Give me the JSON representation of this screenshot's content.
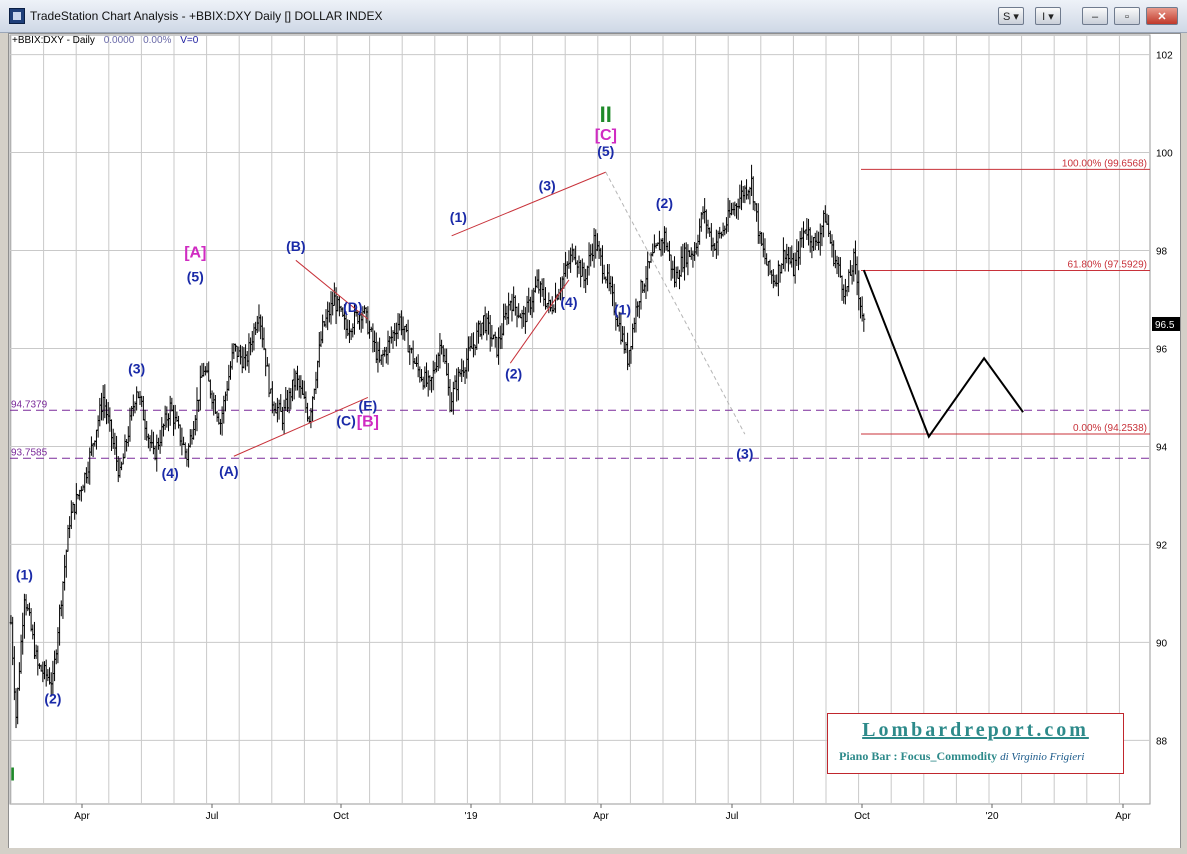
{
  "window": {
    "title": "TradeStation Chart Analysis - +BBIX:DXY Daily [] DOLLAR INDEX",
    "buttons": [
      "S",
      "I"
    ]
  },
  "header": {
    "symbol": "+BBIX:DXY - Daily",
    "change": "0.0000",
    "percent": "0.00%",
    "volume": "V=0"
  },
  "watermark": {
    "title": "Lombardreport.com",
    "subtitle": "Piano Bar : Focus_Commodity",
    "author": "di Virginio Frigieri"
  },
  "chart_data": {
    "type": "ohlc",
    "title": "",
    "x_labels": [
      "Apr",
      "Jul",
      "Oct",
      "'19",
      "Apr",
      "Jul",
      "Oct",
      "'20",
      "Apr"
    ],
    "y_ticks": [
      88,
      90,
      92,
      94,
      96,
      98,
      100,
      102
    ],
    "ylim": [
      86.7,
      102.4
    ],
    "last_price_label": "96.5",
    "grid": true,
    "price_path": [
      [
        0,
        90.4
      ],
      [
        3,
        88.5
      ],
      [
        8,
        91.0
      ],
      [
        16,
        89.5
      ],
      [
        25,
        89.2
      ],
      [
        28,
        90.3
      ],
      [
        35,
        92.5
      ],
      [
        45,
        93.5
      ],
      [
        55,
        95.0
      ],
      [
        65,
        93.4
      ],
      [
        75,
        95.2
      ],
      [
        85,
        93.8
      ],
      [
        95,
        94.8
      ],
      [
        105,
        93.8
      ],
      [
        115,
        95.6
      ],
      [
        125,
        94.5
      ],
      [
        133,
        96.0
      ],
      [
        140,
        95.7
      ],
      [
        148,
        96.8
      ],
      [
        155,
        95.0
      ],
      [
        162,
        94.6
      ],
      [
        170,
        95.4
      ],
      [
        178,
        94.6
      ],
      [
        186,
        96.4
      ],
      [
        193,
        97.0
      ],
      [
        200,
        96.4
      ],
      [
        210,
        96.8
      ],
      [
        220,
        95.7
      ],
      [
        232,
        96.6
      ],
      [
        242,
        95.6
      ],
      [
        250,
        95.2
      ],
      [
        257,
        96.2
      ],
      [
        262,
        94.9
      ],
      [
        268,
        95.5
      ],
      [
        275,
        96.0
      ],
      [
        282,
        96.6
      ],
      [
        290,
        96.0
      ],
      [
        298,
        97.0
      ],
      [
        306,
        96.6
      ],
      [
        314,
        97.3
      ],
      [
        322,
        96.8
      ],
      [
        330,
        97.5
      ],
      [
        336,
        98.0
      ],
      [
        342,
        97.4
      ],
      [
        348,
        98.2
      ],
      [
        355,
        97.5
      ],
      [
        362,
        96.6
      ],
      [
        368,
        95.8
      ],
      [
        374,
        97.0
      ],
      [
        382,
        97.8
      ],
      [
        390,
        98.3
      ],
      [
        396,
        97.4
      ],
      [
        402,
        97.9
      ],
      [
        408,
        98.0
      ],
      [
        413,
        98.8
      ],
      [
        419,
        98.1
      ],
      [
        425,
        98.4
      ],
      [
        430,
        98.8
      ],
      [
        437,
        99.2
      ],
      [
        442,
        99.4
      ],
      [
        447,
        98.2
      ],
      [
        452,
        97.6
      ],
      [
        456,
        97.4
      ],
      [
        462,
        98.0
      ],
      [
        467,
        97.6
      ],
      [
        474,
        98.5
      ],
      [
        480,
        98.1
      ],
      [
        486,
        98.7
      ],
      [
        490,
        98.0
      ],
      [
        494,
        97.6
      ],
      [
        498,
        97.1
      ],
      [
        503,
        97.8
      ],
      [
        509,
        96.5
      ]
    ],
    "waves": [
      {
        "label": "I",
        "date_idx": 1,
        "price": 88.0
      },
      {
        "label": "(1)",
        "date_idx": 8,
        "price": 91.0
      },
      {
        "label": "(2)",
        "date_idx": 25,
        "price": 89.2
      },
      {
        "label": "(3)",
        "date_idx": 75,
        "price": 95.2
      },
      {
        "label": "(4)",
        "date_idx": 95,
        "price": 93.8
      },
      {
        "label": "(5)",
        "date_idx": 110,
        "price": 97.0
      },
      {
        "label": "[A]",
        "date_idx": 110,
        "price": 97.0
      },
      {
        "label": "(A)",
        "date_idx": 133,
        "price": 93.8
      },
      {
        "label": "(B)",
        "date_idx": 170,
        "price": 97.7
      },
      {
        "label": "(C)",
        "date_idx": 200,
        "price": 95.0
      },
      {
        "label": "(D)",
        "date_idx": 207,
        "price": 96.5
      },
      {
        "label": "(E)",
        "date_idx": 213,
        "price": 95.1
      },
      {
        "label": "[B]",
        "date_idx": 213,
        "price": 95.1
      },
      {
        "label": "(1)",
        "date_idx": 267,
        "price": 98.3
      },
      {
        "label": "(2)",
        "date_idx": 300,
        "price": 95.8
      },
      {
        "label": "(3)",
        "date_idx": 320,
        "price": 98.9
      },
      {
        "label": "(4)",
        "date_idx": 333,
        "price": 97.3
      },
      {
        "label": "(5)",
        "date_idx": 355,
        "price": 99.6
      },
      {
        "label": "[C]",
        "date_idx": 355,
        "price": 99.6
      },
      {
        "label": "II",
        "date_idx": 355,
        "price": 99.6
      },
      {
        "label": "(1)",
        "date_idx": 365,
        "price": 97.1
      },
      {
        "label": "(2)",
        "date_idx": 390,
        "price": 98.5
      },
      {
        "label": "(3)",
        "date_idx": 438,
        "price": 94.2
      }
    ],
    "fib_levels": [
      {
        "label": "100.00% (99.6568)",
        "value": 99.6568
      },
      {
        "label": "61.80% (97.5929)",
        "value": 97.5929
      },
      {
        "label": "0.00% (94.2538)",
        "value": 94.2538
      }
    ],
    "support_lines": [
      {
        "label": "94.7379",
        "value": 94.7379
      },
      {
        "label": "93.7585",
        "value": 93.7585
      }
    ],
    "projection": [
      [
        0,
        97.6
      ],
      [
        20,
        94.2
      ],
      [
        37,
        95.8
      ],
      [
        49,
        94.7
      ]
    ]
  }
}
